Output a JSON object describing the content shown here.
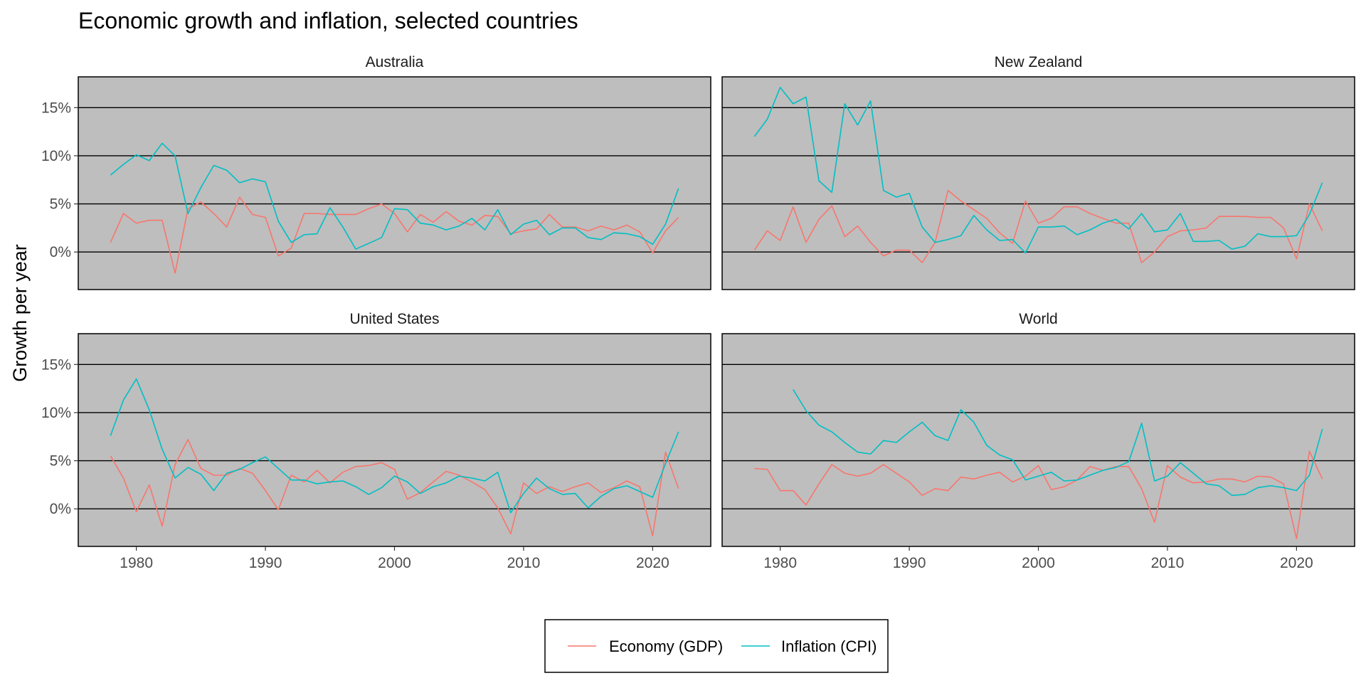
{
  "chart_data": {
    "type": "line",
    "title": "Economic growth and inflation, selected countries",
    "ylabel": "Growth per year",
    "xlabel": "",
    "xlim": [
      1975.5,
      2024.5
    ],
    "ylim": [
      -3.9,
      18.2
    ],
    "x_ticks": [
      1980,
      1990,
      2000,
      2010,
      2020
    ],
    "x_tick_labels": [
      "1980",
      "1990",
      "2000",
      "2010",
      "2020"
    ],
    "y_ticks": [
      0,
      5,
      10,
      15
    ],
    "y_tick_labels": [
      "0%",
      "5%",
      "10%",
      "15%"
    ],
    "grid": "horizontal major, black",
    "panel_background": "#bebebe",
    "legend_position": "bottom",
    "series_styles": [
      {
        "name": "Economy (GDP)",
        "color": "#f8766d"
      },
      {
        "name": "Inflation (CPI)",
        "color": "#00bfc4"
      }
    ],
    "panels": [
      {
        "strip": "Australia",
        "series": [
          {
            "name": "Economy (GDP)",
            "x_start": 1978,
            "values": [
              1.0,
              4.0,
              3.0,
              3.3,
              3.3,
              -2.2,
              4.5,
              5.2,
              4.0,
              2.6,
              5.7,
              3.9,
              3.6,
              -0.4,
              0.4,
              4.0,
              4.0,
              3.9,
              3.9,
              3.9,
              4.5,
              5.0,
              4.0,
              2.1,
              3.9,
              3.1,
              4.2,
              3.2,
              2.8,
              3.8,
              3.7,
              1.9,
              2.2,
              2.4,
              3.9,
              2.6,
              2.6,
              2.2,
              2.7,
              2.3,
              2.8,
              2.1,
              -0.1,
              2.2,
              3.6
            ]
          },
          {
            "name": "Inflation (CPI)",
            "x_start": 1978,
            "values": [
              8.0,
              9.1,
              10.1,
              9.5,
              11.3,
              10.0,
              4.0,
              6.7,
              9.0,
              8.5,
              7.2,
              7.6,
              7.3,
              3.2,
              1.0,
              1.8,
              1.9,
              4.6,
              2.6,
              0.3,
              0.9,
              1.5,
              4.5,
              4.4,
              3.0,
              2.8,
              2.3,
              2.7,
              3.5,
              2.3,
              4.4,
              1.8,
              2.9,
              3.3,
              1.8,
              2.5,
              2.5,
              1.5,
              1.3,
              2.0,
              1.9,
              1.6,
              0.8,
              2.9,
              6.6
            ]
          }
        ]
      },
      {
        "strip": "New Zealand",
        "series": [
          {
            "name": "Economy (GDP)",
            "x_start": 1978,
            "values": [
              0.2,
              2.2,
              1.2,
              4.7,
              1.0,
              3.4,
              4.8,
              1.6,
              2.7,
              1.0,
              -0.4,
              0.2,
              0.2,
              -1.1,
              1.0,
              6.4,
              5.3,
              4.4,
              3.5,
              2.0,
              0.9,
              5.3,
              3.0,
              3.5,
              4.7,
              4.7,
              4.0,
              3.5,
              3.0,
              3.0,
              -1.1,
              0.0,
              1.6,
              2.2,
              2.3,
              2.5,
              3.7,
              3.7,
              3.7,
              3.6,
              3.6,
              2.5,
              -0.7,
              5.0,
              2.2
            ]
          },
          {
            "name": "Inflation (CPI)",
            "x_start": 1978,
            "values": [
              12.0,
              13.8,
              17.1,
              15.4,
              16.1,
              7.4,
              6.2,
              15.4,
              13.2,
              15.7,
              6.4,
              5.7,
              6.1,
              2.6,
              1.0,
              1.3,
              1.7,
              3.8,
              2.3,
              1.2,
              1.3,
              -0.1,
              2.6,
              2.6,
              2.7,
              1.8,
              2.3,
              3.0,
              3.4,
              2.4,
              4.0,
              2.1,
              2.3,
              4.0,
              1.1,
              1.1,
              1.2,
              0.3,
              0.6,
              1.9,
              1.6,
              1.6,
              1.7,
              3.9,
              7.2
            ]
          }
        ]
      },
      {
        "strip": "United States",
        "series": [
          {
            "name": "Economy (GDP)",
            "x_start": 1978,
            "values": [
              5.5,
              3.2,
              -0.3,
              2.5,
              -1.8,
              4.6,
              7.2,
              4.2,
              3.5,
              3.5,
              4.2,
              3.7,
              1.9,
              -0.1,
              3.5,
              2.8,
              4.0,
              2.7,
              3.8,
              4.4,
              4.5,
              4.8,
              4.1,
              1.0,
              1.7,
              2.8,
              3.9,
              3.5,
              2.8,
              2.0,
              0.1,
              -2.6,
              2.7,
              1.6,
              2.3,
              1.8,
              2.3,
              2.7,
              1.7,
              2.2,
              2.9,
              2.3,
              -2.8,
              5.9,
              2.1
            ]
          },
          {
            "name": "Inflation (CPI)",
            "x_start": 1978,
            "values": [
              7.6,
              11.3,
              13.5,
              10.3,
              6.2,
              3.2,
              4.3,
              3.6,
              1.9,
              3.7,
              4.1,
              4.8,
              5.4,
              4.2,
              3.0,
              3.0,
              2.6,
              2.8,
              2.9,
              2.3,
              1.5,
              2.2,
              3.4,
              2.8,
              1.6,
              2.3,
              2.7,
              3.4,
              3.2,
              2.9,
              3.8,
              -0.4,
              1.6,
              3.2,
              2.1,
              1.5,
              1.6,
              0.1,
              1.3,
              2.1,
              2.4,
              1.8,
              1.2,
              4.7,
              8.0
            ]
          }
        ]
      },
      {
        "strip": "World",
        "series": [
          {
            "name": "Economy (GDP)",
            "x_start": 1978,
            "values": [
              4.2,
              4.1,
              1.9,
              1.9,
              0.4,
              2.6,
              4.6,
              3.7,
              3.4,
              3.7,
              4.6,
              3.7,
              2.8,
              1.4,
              2.1,
              1.9,
              3.3,
              3.1,
              3.5,
              3.8,
              2.8,
              3.4,
              4.5,
              2.0,
              2.3,
              3.0,
              4.4,
              4.0,
              4.4,
              4.4,
              2.1,
              -1.4,
              4.5,
              3.3,
              2.7,
              2.8,
              3.1,
              3.1,
              2.8,
              3.4,
              3.3,
              2.6,
              -3.1,
              6.0,
              3.1
            ]
          },
          {
            "name": "Inflation (CPI)",
            "x_start": 1981,
            "values": [
              12.4,
              10.2,
              8.7,
              8.0,
              6.9,
              5.9,
              5.7,
              7.1,
              6.9,
              8.0,
              9.0,
              7.6,
              7.1,
              10.3,
              9.0,
              6.6,
              5.6,
              5.1,
              3.0,
              3.4,
              3.8,
              2.9,
              3.0,
              3.5,
              4.0,
              4.3,
              4.9,
              8.9,
              2.9,
              3.4,
              4.8,
              3.7,
              2.6,
              2.4,
              1.4,
              1.5,
              2.2,
              2.4,
              2.2,
              1.9,
              3.5,
              8.3
            ]
          }
        ]
      }
    ]
  }
}
